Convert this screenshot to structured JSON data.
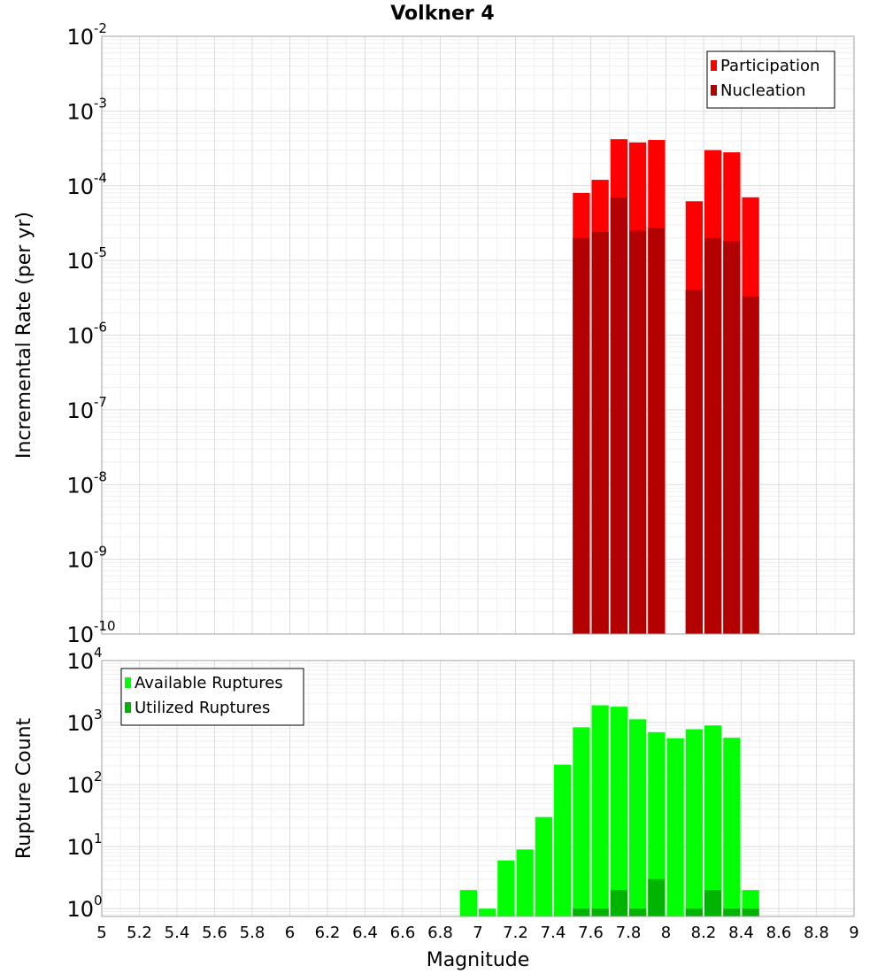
{
  "title": "Volkner 4",
  "colors": {
    "participation": "#ff0000",
    "nucleation": "#b30000",
    "available": "#00ff00",
    "utilized": "#00b300"
  },
  "chart_data": [
    {
      "type": "bar",
      "name": "rate-panel",
      "ylabel": "Incremental Rate (per yr)",
      "yscale": "log",
      "ylim": [
        1e-10,
        0.01
      ],
      "xlim": [
        5,
        9
      ],
      "bar_width": 0.1,
      "yticks": [
        {
          "base": "10",
          "exp": "-10"
        },
        {
          "base": "10",
          "exp": "-9"
        },
        {
          "base": "10",
          "exp": "-8"
        },
        {
          "base": "10",
          "exp": "-7"
        },
        {
          "base": "10",
          "exp": "-6"
        },
        {
          "base": "10",
          "exp": "-5"
        },
        {
          "base": "10",
          "exp": "-4"
        },
        {
          "base": "10",
          "exp": "-3"
        },
        {
          "base": "10",
          "exp": "-2"
        }
      ],
      "legend": {
        "position": "top-right",
        "entries": [
          "Participation",
          "Nucleation"
        ]
      },
      "x": [
        7.55,
        7.65,
        7.75,
        7.85,
        7.95,
        8.15,
        8.25,
        8.35,
        8.45
      ],
      "series": [
        {
          "name": "Participation",
          "values": [
            8e-05,
            0.00012,
            0.00042,
            0.00038,
            0.00041,
            6.2e-05,
            0.0003,
            0.00028,
            7e-05
          ]
        },
        {
          "name": "Nucleation",
          "values": [
            2e-05,
            2.4e-05,
            7e-05,
            2.5e-05,
            2.7e-05,
            4e-06,
            2e-05,
            1.8e-05,
            3.3e-06
          ]
        }
      ]
    },
    {
      "type": "bar",
      "name": "count-panel",
      "xlabel": "Magnitude",
      "ylabel": "Rupture Count",
      "yscale": "log",
      "ylim": [
        0.75,
        10000
      ],
      "xlim": [
        5,
        9
      ],
      "bar_width": 0.1,
      "yticks": [
        {
          "base": "10",
          "exp": "0"
        },
        {
          "base": "10",
          "exp": "1"
        },
        {
          "base": "10",
          "exp": "2"
        },
        {
          "base": "10",
          "exp": "3"
        },
        {
          "base": "10",
          "exp": "4"
        }
      ],
      "xticks": [
        "5",
        "5.2",
        "5.4",
        "5.6",
        "5.8",
        "6",
        "6.2",
        "6.4",
        "6.6",
        "6.8",
        "7",
        "7.2",
        "7.4",
        "7.6",
        "7.8",
        "8",
        "8.2",
        "8.4",
        "8.6",
        "8.8",
        "9"
      ],
      "legend": {
        "position": "top-left",
        "entries": [
          "Available Ruptures",
          "Utilized Ruptures"
        ]
      },
      "x": [
        6.95,
        7.05,
        7.15,
        7.25,
        7.35,
        7.45,
        7.55,
        7.65,
        7.75,
        7.85,
        7.95,
        8.05,
        8.15,
        8.25,
        8.35,
        8.45
      ],
      "series": [
        {
          "name": "Available Ruptures",
          "values": [
            2,
            1,
            6,
            9,
            30,
            210,
            840,
            1900,
            1800,
            1130,
            700,
            560,
            780,
            900,
            570,
            2
          ]
        },
        {
          "name": "Utilized Ruptures",
          "values": [
            0,
            0,
            0,
            0,
            0,
            0,
            1,
            1,
            2,
            1,
            3,
            0,
            1,
            2,
            1,
            1
          ]
        }
      ]
    }
  ]
}
